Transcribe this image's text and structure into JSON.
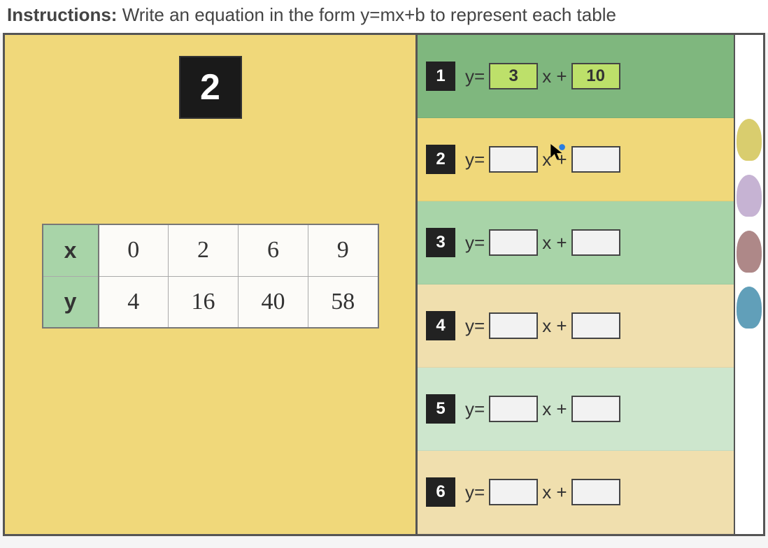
{
  "instructions_label": "Instructions:",
  "instructions_text": "Write an equation in the form y=mx+b to represent each table",
  "question_number": "2",
  "table": {
    "row_x_header": "x",
    "row_y_header": "y",
    "x_values": [
      "0",
      "2",
      "6",
      "9"
    ],
    "y_values": [
      "4",
      "16",
      "40",
      "58"
    ]
  },
  "rows": [
    {
      "num": "1",
      "y_label": "y=",
      "m": "3",
      "x_label": "x +",
      "b": "10",
      "filled": true,
      "bg": "#7fb77e"
    },
    {
      "num": "2",
      "y_label": "y=",
      "m": "",
      "x_label": "x +",
      "b": "",
      "filled": false,
      "bg": "#f0d87a",
      "show_cursor": true
    },
    {
      "num": "3",
      "y_label": "y=",
      "m": "",
      "x_label": "x +",
      "b": "",
      "filled": false,
      "bg": "#a8d4a8"
    },
    {
      "num": "4",
      "y_label": "y=",
      "m": "",
      "x_label": "x +",
      "b": "",
      "filled": false,
      "bg": "#f0dfae"
    },
    {
      "num": "5",
      "y_label": "y=",
      "m": "",
      "x_label": "x +",
      "b": "",
      "filled": false,
      "bg": "#cde6cd"
    },
    {
      "num": "6",
      "y_label": "y=",
      "m": "",
      "x_label": "x +",
      "b": "",
      "filled": false,
      "bg": "#f0dfae"
    }
  ],
  "colors": {
    "left_panel_bg": "#f0d87a",
    "badge_bg": "#1a1a1a",
    "filled_slot_bg": "#bde06a",
    "empty_slot_bg": "#f2f2f2",
    "table_header_bg": "#a8d4a8"
  },
  "puzzle_colors": [
    "#cfc04a",
    "#b8a0c8",
    "#9a6a6a",
    "#3a87a8"
  ]
}
